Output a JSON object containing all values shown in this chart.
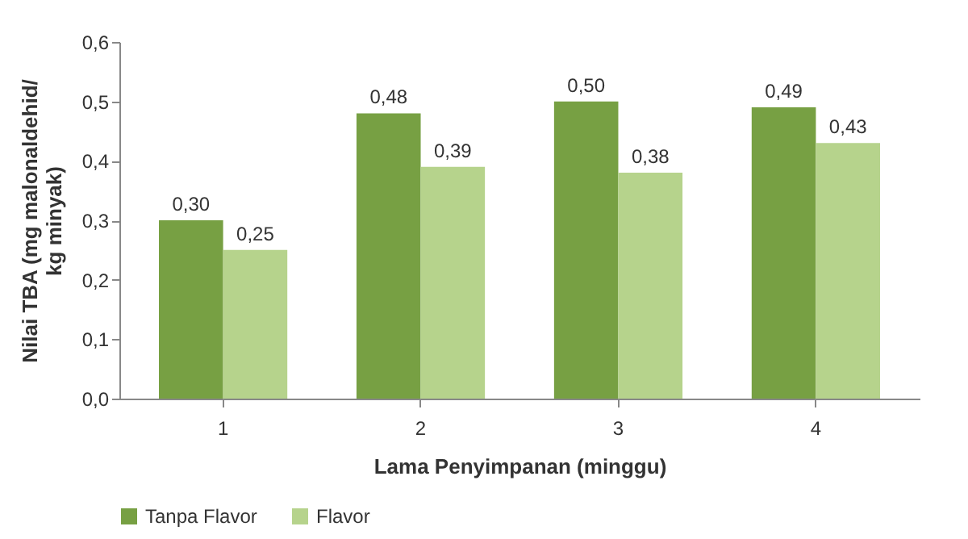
{
  "chart_data": {
    "type": "bar",
    "xlabel": "Lama Penyimpanan (minggu)",
    "ylabel": "Nilai TBA (mg malonaldehid/ kg minyak)",
    "categories": [
      "1",
      "2",
      "3",
      "4"
    ],
    "series": [
      {
        "name": "Tanpa Flavor",
        "color": "#77a043",
        "values": [
          0.3,
          0.48,
          0.5,
          0.49
        ],
        "value_labels": [
          "0,30",
          "0,48",
          "0,50",
          "0,49"
        ]
      },
      {
        "name": "Flavor",
        "color": "#b6d38c",
        "values": [
          0.25,
          0.39,
          0.38,
          0.43
        ],
        "value_labels": [
          "0,25",
          "0,39",
          "0,38",
          "0,43"
        ]
      }
    ],
    "ylim": [
      0,
      0.6
    ],
    "yticks": [
      {
        "value": 0,
        "label": "0,0"
      },
      {
        "value": 0.1,
        "label": "0,1"
      },
      {
        "value": 0.2,
        "label": "0,2"
      },
      {
        "value": 0.3,
        "label": "0,3"
      },
      {
        "value": 0.4,
        "label": "0,4"
      },
      {
        "value": 0.5,
        "label": "0,5"
      },
      {
        "value": 0.6,
        "label": "0,6"
      }
    ],
    "grid": false,
    "legend": "bottom"
  }
}
